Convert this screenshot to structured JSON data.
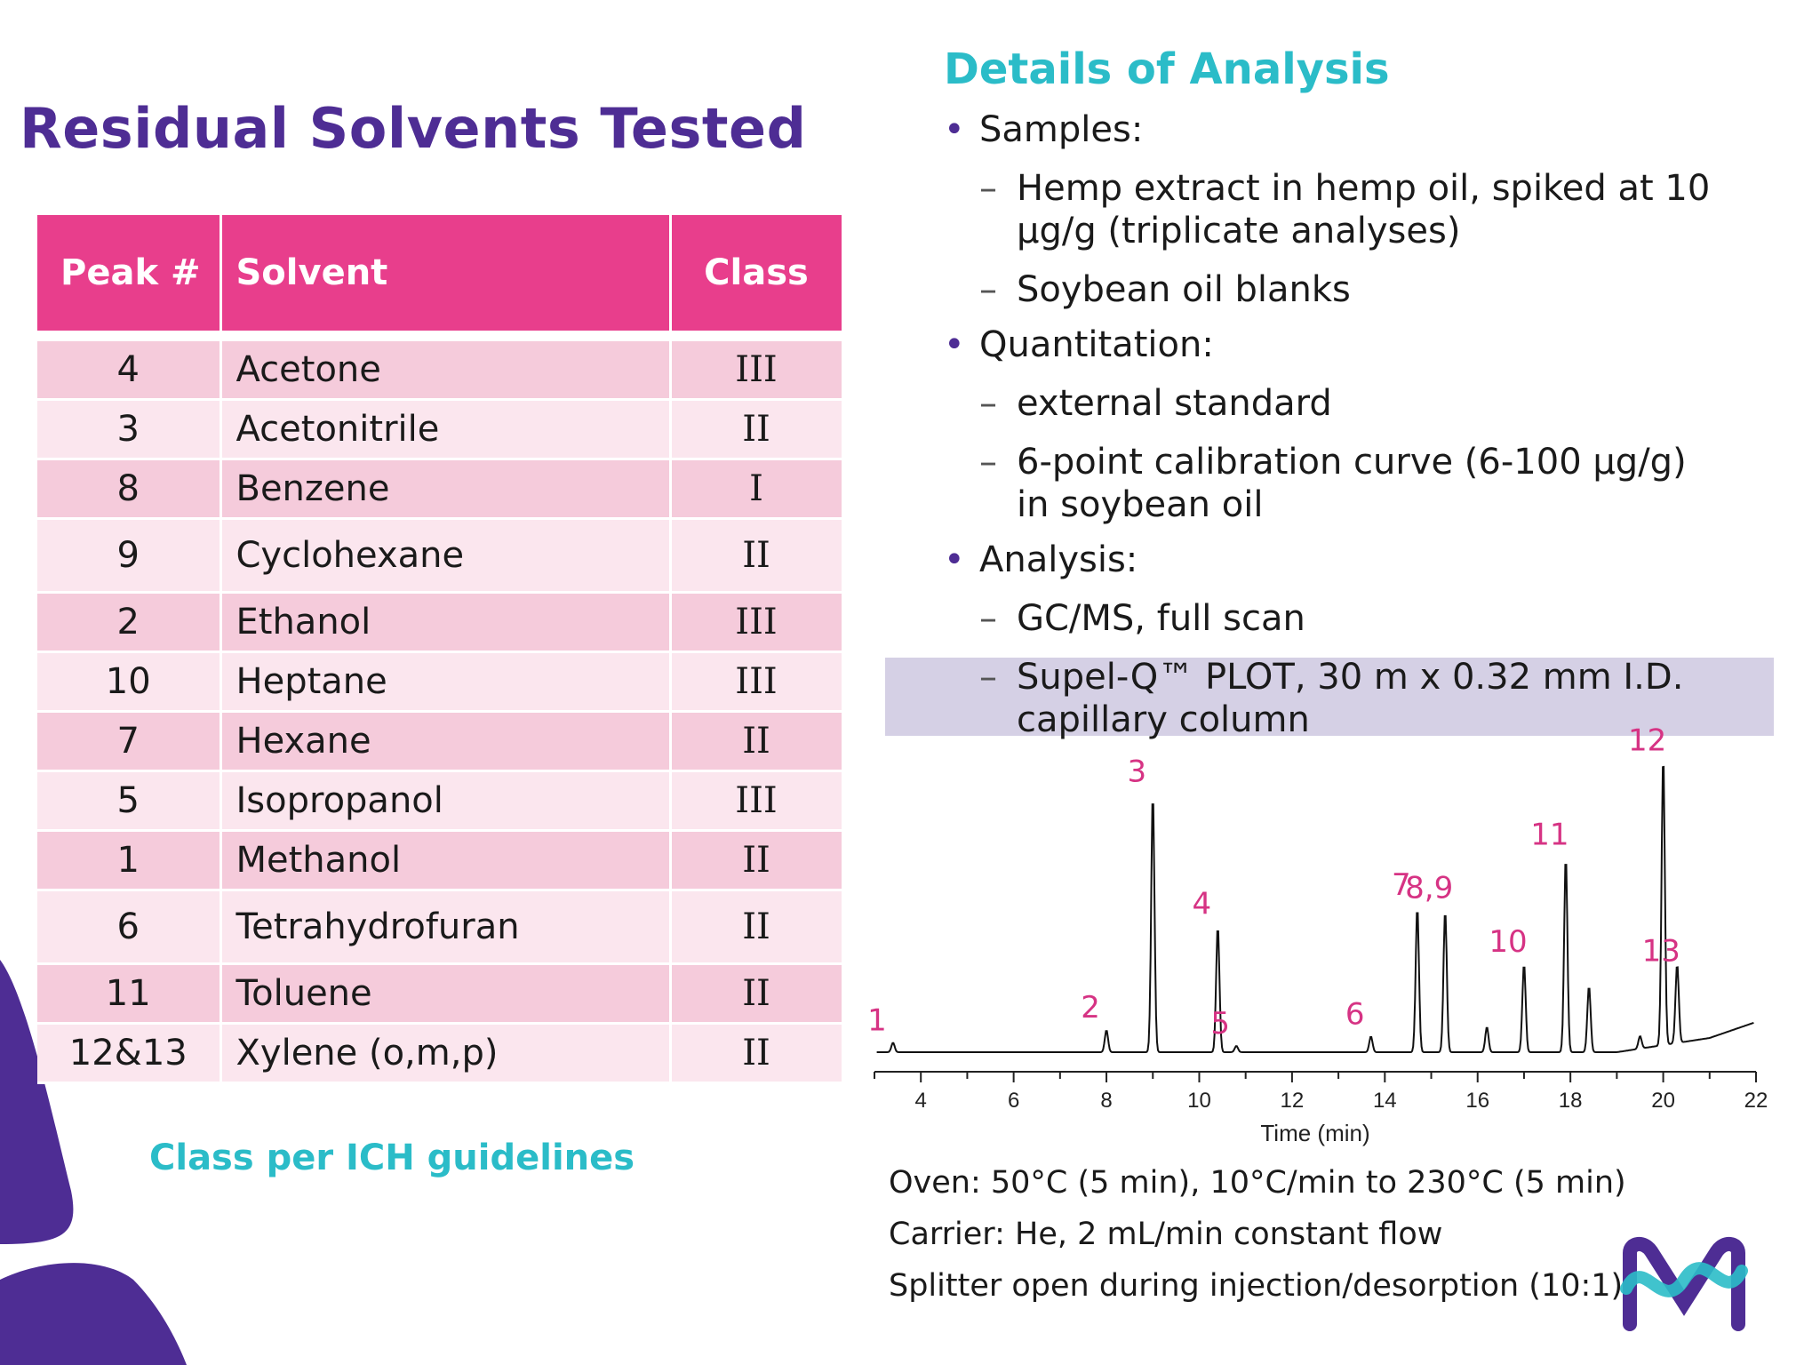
{
  "left": {
    "title": "Residual Solvents Tested",
    "table": {
      "headers": [
        "Peak #",
        "Solvent",
        "Class"
      ],
      "rows": [
        {
          "peak": "4",
          "solvent": "Acetone",
          "class": "III"
        },
        {
          "peak": "3",
          "solvent": "Acetonitrile",
          "class": "II"
        },
        {
          "peak": "8",
          "solvent": "Benzene",
          "class": "I"
        },
        {
          "peak": "9",
          "solvent": "Cyclohexane",
          "class": "II"
        },
        {
          "peak": "2",
          "solvent": "Ethanol",
          "class": "III"
        },
        {
          "peak": "10",
          "solvent": "Heptane",
          "class": "III"
        },
        {
          "peak": "7",
          "solvent": "Hexane",
          "class": "II"
        },
        {
          "peak": "5",
          "solvent": "Isopropanol",
          "class": "III"
        },
        {
          "peak": "1",
          "solvent": "Methanol",
          "class": "II"
        },
        {
          "peak": "6",
          "solvent": "Tetrahydrofuran",
          "class": "II"
        },
        {
          "peak": "11",
          "solvent": "Toluene",
          "class": "II"
        },
        {
          "peak": "12&13",
          "solvent": "Xylene (o,m,p)",
          "class": "II"
        }
      ]
    },
    "footnote": "Class per ICH guidelines"
  },
  "right": {
    "title": "Details of Analysis",
    "bullets": {
      "samples": "Samples:",
      "samples_1a": "Hemp extract in hemp oil, spiked at 10",
      "samples_1b": "µg/g (triplicate analyses)",
      "samples_2": "Soybean oil blanks",
      "quant": "Quantitation:",
      "quant_1": "external standard",
      "quant_2a": "6-point calibration curve (6-100 µg/g)",
      "quant_2b": "in soybean oil",
      "analysis": "Analysis:",
      "analysis_1": "GC/MS, full scan",
      "analysis_2a": "Supel-Q™ PLOT, 30 m x 0.32 mm I.D.",
      "analysis_2b": "capillary column"
    },
    "dash": "–",
    "notes": {
      "oven": "Oven: 50°C (5 min), 10°C/min to 230°C (5 min)",
      "carrier": "Carrier:  He, 2 mL/min constant flow",
      "splitter": "Splitter open during injection/desorption (10:1)"
    }
  },
  "colors": {
    "purple": "#4e2d94",
    "teal": "#2bbcc8",
    "pink": "#e83e8c",
    "peak_label": "#d63384"
  },
  "chart_data": {
    "type": "line",
    "xlabel": "Time (min)",
    "xlim": [
      3,
      22
    ],
    "ylim": [
      0,
      100
    ],
    "xticks": [
      4,
      6,
      8,
      10,
      12,
      14,
      16,
      18,
      20,
      22
    ],
    "peaks": [
      {
        "label": "1",
        "time": 3.4,
        "height": 3
      },
      {
        "label": "2",
        "time": 8.0,
        "height": 7
      },
      {
        "label": "3",
        "time": 9.0,
        "height": 82
      },
      {
        "label": "4",
        "time": 10.4,
        "height": 40
      },
      {
        "label": "5",
        "time": 10.8,
        "height": 2
      },
      {
        "label": "6",
        "time": 13.7,
        "height": 5
      },
      {
        "label": "7",
        "time": 14.7,
        "height": 46
      },
      {
        "label": "8,9",
        "time": 15.3,
        "height": 45
      },
      {
        "label": "10",
        "time": 17.0,
        "height": 28
      },
      {
        "label": "11",
        "time": 17.9,
        "height": 62
      },
      {
        "label": "12",
        "time": 20.0,
        "height": 92
      },
      {
        "label": "13",
        "time": 20.3,
        "height": 25
      }
    ],
    "unlabeled_peaks": [
      {
        "time": 16.2,
        "height": 8
      },
      {
        "time": 18.4,
        "height": 21
      },
      {
        "time": 19.5,
        "height": 4
      }
    ]
  }
}
